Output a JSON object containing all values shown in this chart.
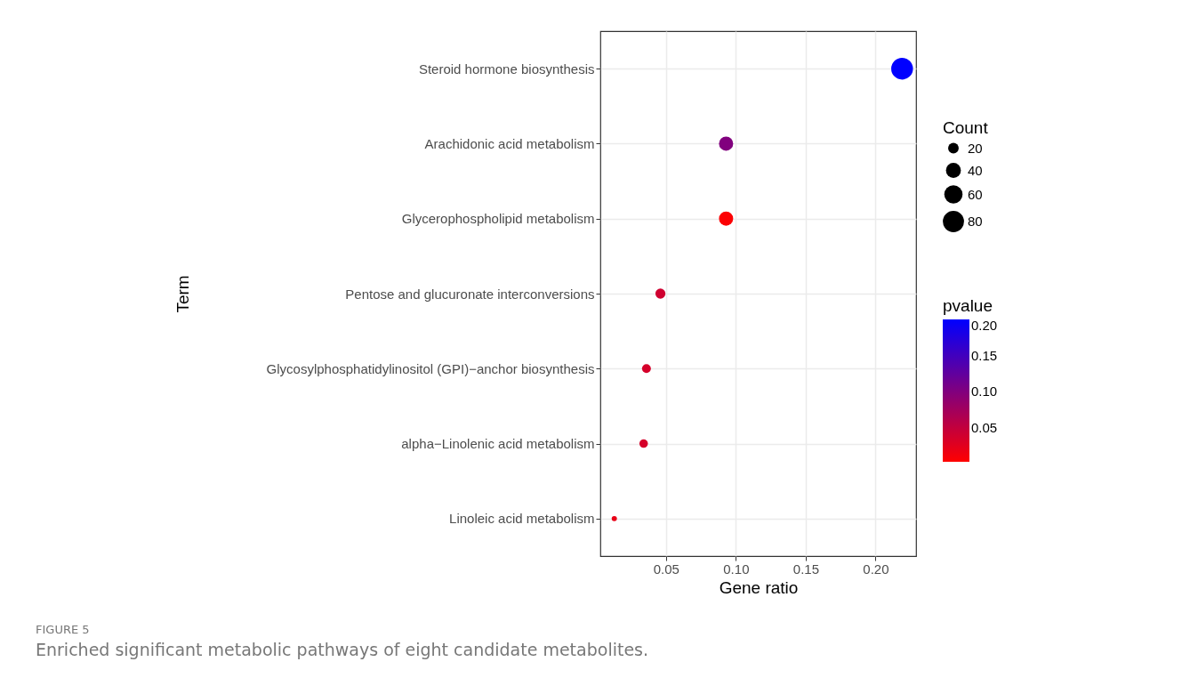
{
  "chart_data": {
    "type": "bubble",
    "xlabel": "Gene ratio",
    "ylabel": "Term",
    "legend_title": "Count",
    "clabel": "pvalue",
    "categories": [
      "Steroid hormone biosynthesis",
      "Arachidonic acid metabolism",
      "Glycerophospholipid metabolism",
      "Pentose and glucuronate interconversions",
      "Glycosylphosphatidylinositol (GPI)−anchor biosynthesis",
      "alpha−Linolenic acid metabolism",
      "Linoleic acid metabolism"
    ],
    "orientation": "horizontal",
    "values": [
      0.219,
      0.093,
      0.093,
      0.046,
      0.036,
      0.034,
      0.013
    ],
    "sizes": [
      85,
      36,
      36,
      18,
      14,
      13,
      5
    ],
    "cvalues": [
      0.2,
      0.1,
      0.005,
      0.04,
      0.035,
      0.035,
      0.02
    ],
    "size_legend": [
      {
        "value": 20,
        "label": "20"
      },
      {
        "value": 40,
        "label": "40"
      },
      {
        "value": 60,
        "label": "60"
      },
      {
        "value": 80,
        "label": "80"
      }
    ],
    "clim": [
      0.0025,
      0.2
    ],
    "cticks": [
      {
        "value": 0.05,
        "label": "0.05"
      },
      {
        "value": 0.1,
        "label": "0.10"
      },
      {
        "value": 0.15,
        "label": "0.15"
      },
      {
        "value": 0.2,
        "label": "0.20"
      }
    ],
    "xlim": [
      0.003,
      0.229
    ],
    "xticks": [
      {
        "value": 0.05,
        "label": "0.05"
      },
      {
        "value": 0.1,
        "label": "0.10"
      },
      {
        "value": 0.15,
        "label": "0.15"
      },
      {
        "value": 0.2,
        "label": "0.20"
      }
    ],
    "grid": true,
    "annotations": [
      "FIGURE 5",
      "Enriched significant metabolic pathways of eight candidate metabolites."
    ]
  }
}
